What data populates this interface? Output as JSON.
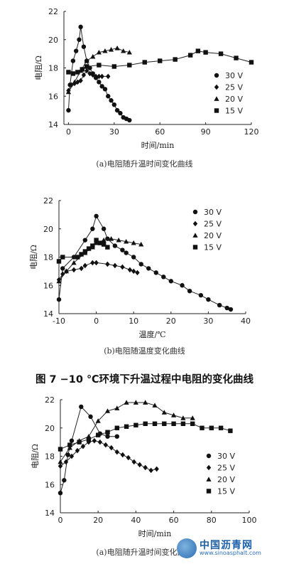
{
  "figure_title": "图 7   −10 ℃环境下升温过程中电阻的变化曲线",
  "watermark": {
    "name": "中国沥青网",
    "url": "www.sinoasphalt.com"
  },
  "legend_labels": [
    "30 V",
    "25 V",
    "20 V",
    "15 V"
  ],
  "chart_data": [
    {
      "type": "line",
      "caption": "(a)电阻随升温时间变化曲线",
      "xlabel": "时间/min",
      "ylabel": "电阻/Ω",
      "xlim": [
        -3,
        120
      ],
      "ylim": [
        14,
        22
      ],
      "xticks": [
        0,
        30,
        60,
        90,
        120
      ],
      "yticks": [
        14,
        16,
        18,
        20,
        22
      ],
      "legend": "right",
      "series": [
        {
          "name": "30 V",
          "marker": "circle",
          "points": [
            [
              0,
              15
            ],
            [
              1,
              16.8
            ],
            [
              3,
              18.5
            ],
            [
              5,
              19.2
            ],
            [
              7,
              20
            ],
            [
              8,
              20.9
            ],
            [
              10,
              19.5
            ],
            [
              12,
              18.5
            ],
            [
              14,
              18
            ],
            [
              16,
              17.6
            ],
            [
              18,
              17.3
            ],
            [
              20,
              17
            ],
            [
              22,
              16.7
            ],
            [
              24,
              16.5
            ],
            [
              26,
              16
            ],
            [
              28,
              15.7
            ],
            [
              30,
              15.4
            ],
            [
              32,
              15
            ],
            [
              34,
              14.8
            ],
            [
              36,
              14.5
            ],
            [
              38,
              14.4
            ],
            [
              40,
              14.3
            ]
          ]
        },
        {
          "name": "25 V",
          "marker": "diamond",
          "points": [
            [
              0,
              16.4
            ],
            [
              2,
              16.8
            ],
            [
              4,
              16.9
            ],
            [
              6,
              17
            ],
            [
              8,
              17.1
            ],
            [
              10,
              17.5
            ],
            [
              12,
              17.8
            ],
            [
              14,
              17.6
            ],
            [
              16,
              17.5
            ],
            [
              18,
              17.4
            ],
            [
              20,
              17.4
            ],
            [
              22,
              17.4
            ],
            [
              26,
              17.4
            ]
          ]
        },
        {
          "name": "20 V",
          "marker": "triangle",
          "points": [
            [
              0,
              16.3
            ],
            [
              4,
              17
            ],
            [
              8,
              17.8
            ],
            [
              12,
              18.5
            ],
            [
              16,
              18.8
            ],
            [
              20,
              19.1
            ],
            [
              24,
              19.2
            ],
            [
              28,
              19.3
            ],
            [
              32,
              19.4
            ],
            [
              36,
              19.2
            ],
            [
              40,
              19.1
            ]
          ]
        },
        {
          "name": "15 V",
          "marker": "square",
          "points": [
            [
              0,
              17.7
            ],
            [
              3,
              17.6
            ],
            [
              6,
              17.7
            ],
            [
              9,
              17.9
            ],
            [
              12,
              18.1
            ],
            [
              20,
              18.2
            ],
            [
              30,
              18.1
            ],
            [
              40,
              18.2
            ],
            [
              50,
              18.4
            ],
            [
              60,
              18.5
            ],
            [
              70,
              18.6
            ],
            [
              80,
              18.9
            ],
            [
              85,
              19.2
            ],
            [
              90,
              19.1
            ],
            [
              100,
              19
            ],
            [
              110,
              18.7
            ],
            [
              120,
              18.4
            ]
          ]
        }
      ]
    },
    {
      "type": "line",
      "caption": "(b)电阻随温度变化曲线",
      "xlabel": "温度/℃",
      "ylabel": "电阻/Ω",
      "xlim": [
        -10,
        40
      ],
      "ylim": [
        14,
        22
      ],
      "xticks": [
        -10,
        0,
        10,
        20,
        30,
        40
      ],
      "yticks": [
        14,
        16,
        18,
        20,
        22
      ],
      "legend": "right",
      "series": [
        {
          "name": "30 V",
          "marker": "circle",
          "points": [
            [
              -10,
              15
            ],
            [
              -9,
              17.2
            ],
            [
              -6,
              18
            ],
            [
              -3,
              19.2
            ],
            [
              -1,
              20
            ],
            [
              0,
              20.9
            ],
            [
              2,
              20
            ],
            [
              3,
              19.3
            ],
            [
              5,
              18.8
            ],
            [
              7,
              18.5
            ],
            [
              8,
              18.3
            ],
            [
              10,
              18
            ],
            [
              12,
              17.5
            ],
            [
              14,
              17.2
            ],
            [
              16,
              16.9
            ],
            [
              18,
              16.6
            ],
            [
              20,
              16.3
            ],
            [
              23,
              16
            ],
            [
              25,
              15.6
            ],
            [
              28,
              15.3
            ],
            [
              30,
              15
            ],
            [
              33,
              14.6
            ],
            [
              35,
              14.4
            ],
            [
              36,
              14.3
            ]
          ]
        },
        {
          "name": "25 V",
          "marker": "diamond",
          "points": [
            [
              -10,
              16.4
            ],
            [
              -9,
              16.8
            ],
            [
              -8,
              17
            ],
            [
              -6,
              17.1
            ],
            [
              -4,
              17.2
            ],
            [
              -3,
              17.4
            ],
            [
              -1,
              17.6
            ],
            [
              0,
              17.6
            ],
            [
              3,
              17.5
            ],
            [
              5,
              17.4
            ],
            [
              7,
              17.3
            ],
            [
              9,
              17.1
            ],
            [
              10,
              17
            ],
            [
              11,
              16.9
            ]
          ]
        },
        {
          "name": "20 V",
          "marker": "triangle",
          "points": [
            [
              -10,
              16.3
            ],
            [
              -8,
              17
            ],
            [
              -6,
              17.6
            ],
            [
              -3,
              18.3
            ],
            [
              -1,
              18.7
            ],
            [
              0,
              19
            ],
            [
              2,
              19.2
            ],
            [
              4,
              19.3
            ],
            [
              6,
              19.2
            ],
            [
              8,
              19.1
            ],
            [
              10,
              19
            ],
            [
              12,
              18.9
            ]
          ]
        },
        {
          "name": "15 V",
          "marker": "square",
          "points": [
            [
              -10,
              17.7
            ],
            [
              -9,
              18
            ],
            [
              -5,
              18
            ],
            [
              -4,
              18.2
            ],
            [
              -3,
              18.4
            ],
            [
              -2,
              18.6
            ],
            [
              -1,
              18.8
            ],
            [
              0,
              19.2
            ],
            [
              1,
              19
            ],
            [
              2,
              18.9
            ],
            [
              3,
              18.7
            ]
          ]
        }
      ]
    },
    {
      "type": "line",
      "caption": "(a)电阻随升温时间变化曲线",
      "xlabel": "时间/min",
      "ylabel": "电阻/Ω",
      "xlim": [
        0,
        100
      ],
      "ylim": [
        14,
        22
      ],
      "xticks": [
        0,
        20,
        40,
        60,
        80,
        100
      ],
      "yticks": [
        14,
        16,
        18,
        20,
        22
      ],
      "legend": "right",
      "series": [
        {
          "name": "30 V",
          "marker": "circle",
          "points": [
            [
              0,
              15.4
            ],
            [
              2,
              16.3
            ],
            [
              4,
              18.1
            ],
            [
              6,
              19.1
            ],
            [
              11,
              21.5
            ],
            [
              16,
              20.8
            ],
            [
              21,
              19.6
            ],
            [
              25,
              19.4
            ],
            [
              30,
              19.4
            ]
          ]
        },
        {
          "name": "25 V",
          "marker": "diamond",
          "points": [
            [
              0,
              17.3
            ],
            [
              3,
              17.6
            ],
            [
              6,
              18
            ],
            [
              9,
              18.4
            ],
            [
              12,
              18.7
            ],
            [
              15,
              19
            ],
            [
              18,
              19.1
            ],
            [
              21,
              19
            ],
            [
              24,
              18.8
            ],
            [
              27,
              18.6
            ],
            [
              30,
              18.3
            ],
            [
              33,
              18.1
            ],
            [
              36,
              17.9
            ],
            [
              39,
              17.6
            ],
            [
              42,
              17.4
            ],
            [
              45,
              17.2
            ],
            [
              48,
              17
            ],
            [
              51,
              17.1
            ]
          ]
        },
        {
          "name": "20 V",
          "marker": "triangle",
          "points": [
            [
              0,
              17.6
            ],
            [
              5,
              18.6
            ],
            [
              10,
              19.1
            ],
            [
              15,
              19.4
            ],
            [
              20,
              20.5
            ],
            [
              25,
              21.2
            ],
            [
              30,
              21.4
            ],
            [
              35,
              21.8
            ],
            [
              40,
              21.8
            ],
            [
              45,
              21.8
            ],
            [
              50,
              21.6
            ],
            [
              55,
              21.1
            ],
            [
              60,
              20.9
            ],
            [
              65,
              20.7
            ],
            [
              70,
              20.7
            ]
          ]
        },
        {
          "name": "15 V",
          "marker": "square",
          "points": [
            [
              0,
              18.5
            ],
            [
              5,
              18.8
            ],
            [
              10,
              19
            ],
            [
              15,
              19.2
            ],
            [
              20,
              19.5
            ],
            [
              25,
              19.7
            ],
            [
              30,
              20
            ],
            [
              35,
              20.1
            ],
            [
              40,
              20.2
            ],
            [
              45,
              20.3
            ],
            [
              50,
              20.3
            ],
            [
              55,
              20.3
            ],
            [
              60,
              20.3
            ],
            [
              65,
              20.3
            ],
            [
              70,
              20.3
            ],
            [
              75,
              20
            ],
            [
              80,
              20
            ],
            [
              85,
              20
            ],
            [
              90,
              19.8
            ]
          ]
        }
      ]
    }
  ]
}
